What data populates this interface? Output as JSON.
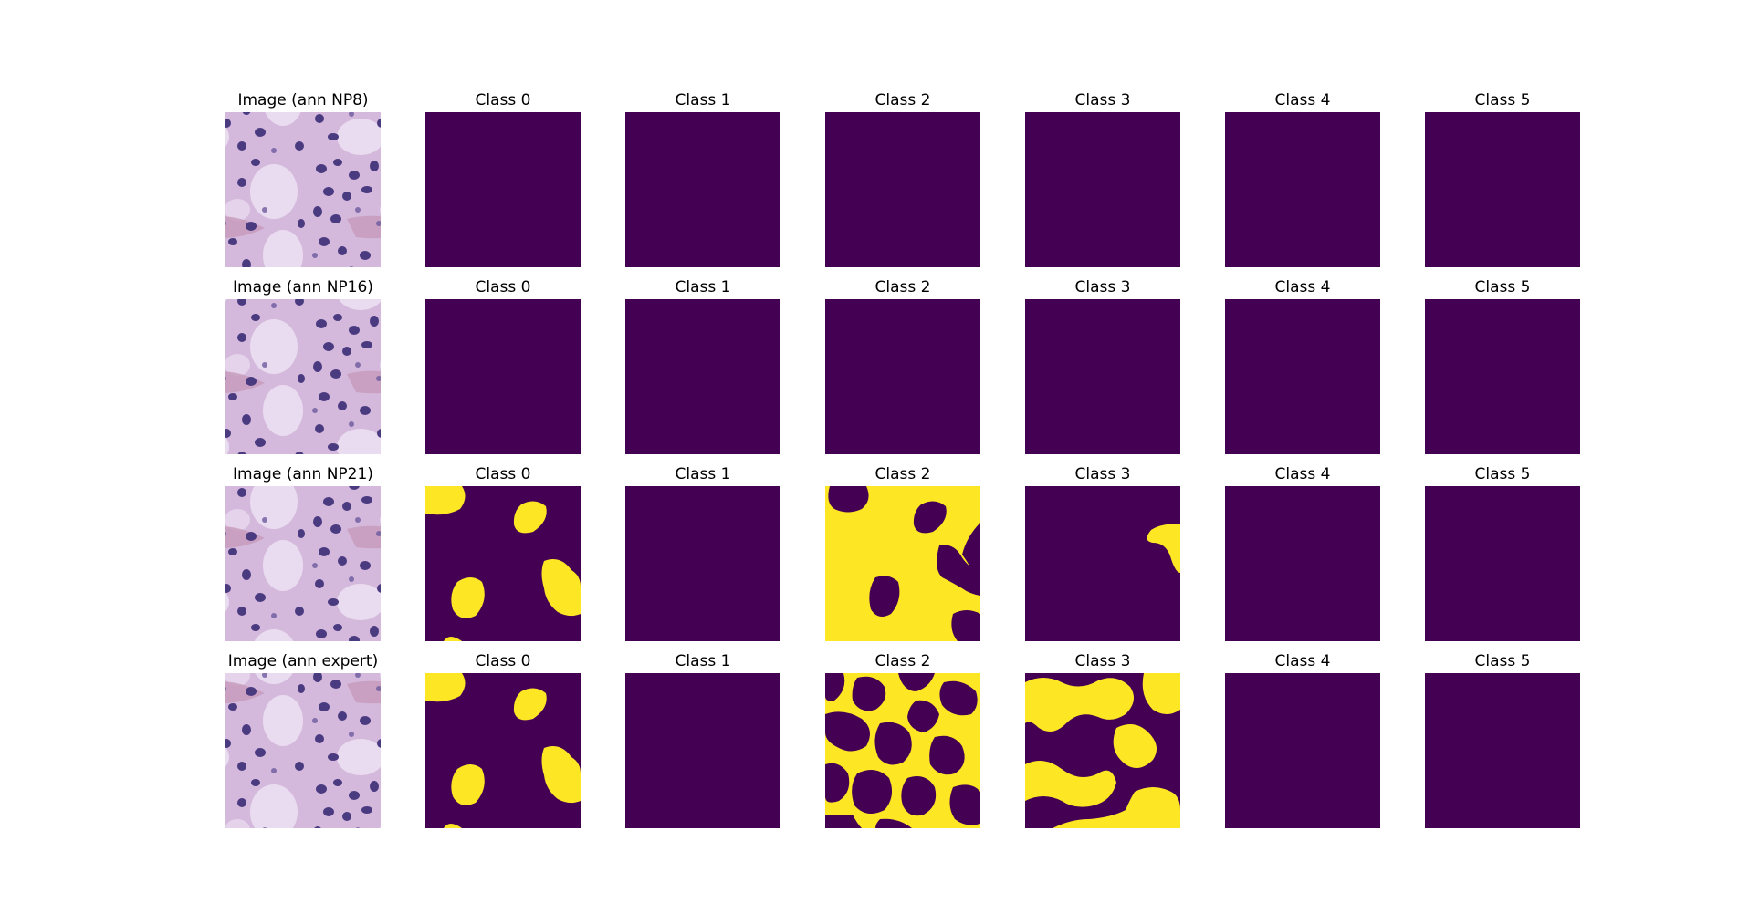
{
  "colors": {
    "background": "#440154",
    "foreground": "#fde725"
  },
  "rows": [
    {
      "image_title": "Image (ann NP8)",
      "class_titles": [
        "Class 0",
        "Class 1",
        "Class 2",
        "Class 3",
        "Class 4",
        "Class 5"
      ]
    },
    {
      "image_title": "Image (ann NP16)",
      "class_titles": [
        "Class 0",
        "Class 1",
        "Class 2",
        "Class 3",
        "Class 4",
        "Class 5"
      ]
    },
    {
      "image_title": "Image (ann NP21)",
      "class_titles": [
        "Class 0",
        "Class 1",
        "Class 2",
        "Class 3",
        "Class 4",
        "Class 5"
      ]
    },
    {
      "image_title": "Image (ann expert)",
      "class_titles": [
        "Class 0",
        "Class 1",
        "Class 2",
        "Class 3",
        "Class 4",
        "Class 5"
      ]
    }
  ]
}
